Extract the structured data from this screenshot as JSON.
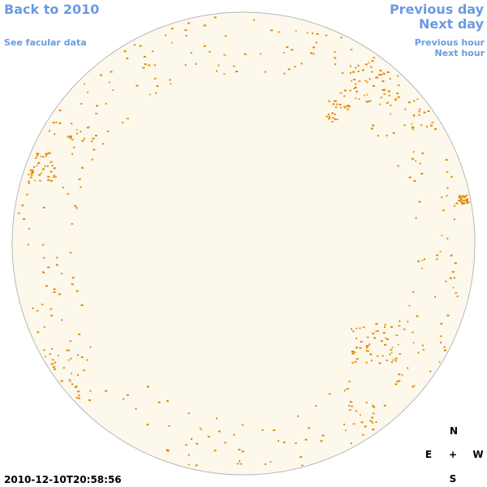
{
  "links": {
    "back": "Back to 2010",
    "facular": "See facular data",
    "previous_day": "Previous day",
    "next_day": "Next day",
    "previous_hour": "Previous hour",
    "next_hour": "Next hour"
  },
  "timestamp": "2010-12-10T20:58:56",
  "compass": {
    "north": "N",
    "east": "E",
    "center": "+",
    "west": "W",
    "south": "S"
  }
}
